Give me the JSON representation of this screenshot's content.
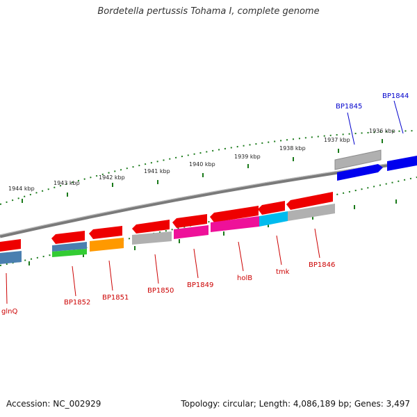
{
  "title": "Bordetella pertussis Tohama I, complete genome",
  "footer": {
    "accession": "Accession: NC_002929",
    "stats": "Topology: circular; Length: 4,086,189 bp; Genes: 3,497"
  },
  "colors": {
    "backbone": "#7a7a7a",
    "ticks": "#1a7a1a",
    "label_forward": "#0000cc",
    "label_reverse": "#cc0000",
    "red": "#ee0000",
    "grey": "#b0b0b0",
    "blue": "#0000ee",
    "steelblue": "#4a7fb0",
    "green": "#33cc33",
    "orange": "#ff9900",
    "magenta": "#ee1199",
    "cyan": "#00bbee"
  },
  "scale_labels": [
    "1944 kbp",
    "1943 kbp",
    "1942 kbp",
    "1941 kbp",
    "1940 kbp",
    "1939 kbp",
    "1938 kbp",
    "1937 kbp",
    "1936 kbp"
  ],
  "gene_labels_forward": [
    "BP1845",
    "BP1844"
  ],
  "gene_labels_reverse": [
    "glnQ",
    "BP1852",
    "BP1851",
    "BP1850",
    "BP1849",
    "holB",
    "tmk",
    "BP1846"
  ]
}
